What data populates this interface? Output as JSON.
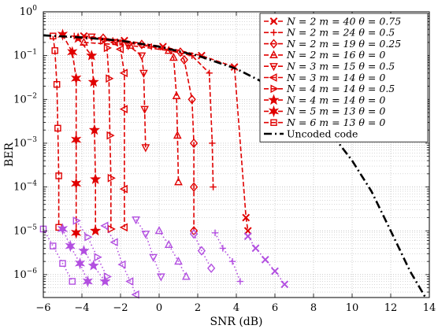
{
  "chart_data": {
    "type": "line",
    "xlabel": "SNR (dB)",
    "ylabel": "BER",
    "xlim": [
      -6,
      14
    ],
    "ylim": [
      3e-07,
      1
    ],
    "yscale": "log",
    "grid": true,
    "legend_position": "top-right",
    "x_ticks": [
      "−6",
      "−4",
      "−2",
      "0",
      "2",
      "4",
      "6",
      "8",
      "10",
      "12",
      "14"
    ],
    "y_ticks": [
      "10^0",
      "10^-1",
      "10^-2",
      "10^-3",
      "10^-4",
      "10^-5",
      "10^-6"
    ],
    "series": [
      {
        "name": "N = 2  m = 40  θ = 0.75",
        "marker": "x",
        "color": "#e00000",
        "dash": "6,3",
        "points": [
          [
            -3.9,
            0.28
          ],
          [
            -1.8,
            0.22
          ],
          [
            0.2,
            0.16
          ],
          [
            2.2,
            0.1
          ],
          [
            3.9,
            0.055
          ],
          [
            4.5,
            2e-05
          ],
          [
            4.6,
            1e-05
          ]
        ]
      },
      {
        "name": "N = 2  m = 24  θ = 0.5",
        "marker": "plus",
        "color": "#e00000",
        "dash": "6,3",
        "points": [
          [
            -4.4,
            0.28
          ],
          [
            -2.4,
            0.22
          ],
          [
            -0.4,
            0.16
          ],
          [
            1.7,
            0.1
          ],
          [
            2.6,
            0.04
          ],
          [
            2.75,
            0.001
          ],
          [
            2.8,
            0.0001
          ]
        ]
      },
      {
        "name": "N = 2  m = 19  θ = 0.25",
        "marker": "diamond",
        "color": "#e00000",
        "dash": "6,3",
        "points": [
          [
            -2.9,
            0.25
          ],
          [
            -0.9,
            0.18
          ],
          [
            1.1,
            0.12
          ],
          [
            1.3,
            0.08
          ],
          [
            1.7,
            0.01
          ],
          [
            1.8,
            0.001
          ],
          [
            1.8,
            0.0001
          ],
          [
            1.8,
            1e-05
          ]
        ]
      },
      {
        "name": "N = 2  m = 16  θ = 0",
        "marker": "triangle-up",
        "color": "#e00000",
        "dash": "6,3",
        "points": [
          [
            -3.9,
            0.2
          ],
          [
            -1.5,
            0.17
          ],
          [
            0.5,
            0.13
          ],
          [
            0.75,
            0.09
          ],
          [
            0.9,
            0.012
          ],
          [
            0.95,
            0.0015
          ],
          [
            1.0,
            0.00013
          ]
        ]
      },
      {
        "name": "N = 3  m = 15  θ = 0.5",
        "marker": "triangle-down",
        "color": "#e00000",
        "dash": "6,3",
        "points": [
          [
            -3.5,
            0.27
          ],
          [
            -1.6,
            0.17
          ],
          [
            -0.9,
            0.1
          ],
          [
            -0.8,
            0.04
          ],
          [
            -0.75,
            0.006
          ],
          [
            -0.7,
            0.0008
          ]
        ]
      },
      {
        "name": "N = 3  m = 14  θ = 0",
        "marker": "triangle-left",
        "color": "#e00000",
        "dash": "6,3",
        "points": [
          [
            -2.3,
            0.2
          ],
          [
            -2.0,
            0.14
          ],
          [
            -1.8,
            0.04
          ],
          [
            -1.8,
            0.006
          ],
          [
            -1.8,
            9e-05
          ],
          [
            -1.8,
            1.2e-05
          ]
        ]
      },
      {
        "name": "N = 4  m = 14  θ = 0.5",
        "marker": "triangle-right",
        "color": "#e00000",
        "dash": "6,3",
        "points": [
          [
            -2.9,
            0.22
          ],
          [
            -2.7,
            0.15
          ],
          [
            -2.6,
            0.03
          ],
          [
            -2.55,
            0.0015
          ],
          [
            -2.5,
            0.00016
          ],
          [
            -2.5,
            1.1e-05
          ]
        ]
      },
      {
        "name": "N = 4  m = 14  θ = 0",
        "marker": "star5",
        "color": "#e00000",
        "dash": "6,3",
        "points": [
          [
            -4.2,
            0.25
          ],
          [
            -3.5,
            0.1
          ],
          [
            -3.4,
            0.025
          ],
          [
            -3.35,
            0.002
          ],
          [
            -3.3,
            0.00015
          ],
          [
            -3.3,
            1e-05
          ]
        ]
      },
      {
        "name": "N = 5  m = 13  θ = 0",
        "marker": "star6",
        "color": "#e00000",
        "dash": "6,3",
        "points": [
          [
            -5.0,
            0.3
          ],
          [
            -4.5,
            0.12
          ],
          [
            -4.3,
            0.03
          ],
          [
            -4.3,
            0.0012
          ],
          [
            -4.3,
            0.00012
          ],
          [
            -4.3,
            9e-06
          ]
        ]
      },
      {
        "name": "N = 6  m = 13  θ = 0",
        "marker": "square",
        "color": "#e00000",
        "dash": "6,3",
        "points": [
          [
            -5.5,
            0.28
          ],
          [
            -5.4,
            0.13
          ],
          [
            -5.3,
            0.022
          ],
          [
            -5.25,
            0.0022
          ],
          [
            -5.2,
            0.00018
          ],
          [
            -5.2,
            1.2e-05
          ]
        ]
      },
      {
        "name": "Uncoded code",
        "marker": "none",
        "color": "#000000",
        "dash": "10,4,2,4",
        "width": 2.6,
        "points": [
          [
            -6,
            0.29
          ],
          [
            -4,
            0.26
          ],
          [
            -2,
            0.22
          ],
          [
            0,
            0.16
          ],
          [
            2,
            0.1
          ],
          [
            4,
            0.05
          ],
          [
            6,
            0.018
          ],
          [
            8,
            0.004
          ],
          [
            9,
            0.0015
          ],
          [
            10,
            0.0004
          ],
          [
            11,
            8e-05
          ],
          [
            12,
            1e-05
          ],
          [
            13,
            1.2e-06
          ],
          [
            13.8,
            3e-07
          ]
        ]
      },
      {
        "name": "",
        "marker": "x",
        "color": "#b24fe0",
        "dash": "1.5,3",
        "points": [
          [
            4.6,
            7.5e-06
          ],
          [
            5,
            4e-06
          ],
          [
            5.5,
            2.2e-06
          ],
          [
            6.0,
            1.2e-06
          ],
          [
            6.5,
            6e-07
          ]
        ]
      },
      {
        "name": "",
        "marker": "plus",
        "color": "#b24fe0",
        "dash": "1.5,3",
        "points": [
          [
            2.9,
            9e-06
          ],
          [
            3.3,
            4e-06
          ],
          [
            3.8,
            2e-06
          ],
          [
            4.2,
            7e-07
          ]
        ]
      },
      {
        "name": "",
        "marker": "diamond",
        "color": "#b24fe0",
        "dash": "1.5,3",
        "points": [
          [
            1.8,
            8.5e-06
          ],
          [
            2.2,
            3.5e-06
          ],
          [
            2.7,
            1.4e-06
          ]
        ]
      },
      {
        "name": "",
        "marker": "triangle-up",
        "color": "#b24fe0",
        "dash": "1.5,3",
        "points": [
          [
            0.0,
            1e-05
          ],
          [
            0.5,
            4.8e-06
          ],
          [
            1.0,
            2e-06
          ],
          [
            1.4,
            9e-07
          ]
        ]
      },
      {
        "name": "",
        "marker": "triangle-down",
        "color": "#b24fe0",
        "dash": "1.5,3",
        "points": [
          [
            -1.2,
            1.8e-05
          ],
          [
            -0.7,
            8.5e-06
          ],
          [
            -0.3,
            2.5e-06
          ],
          [
            0.1,
            9e-07
          ]
        ]
      },
      {
        "name": "",
        "marker": "triangle-left",
        "color": "#b24fe0",
        "dash": "1.5,3",
        "points": [
          [
            -2.8,
            1.3e-05
          ],
          [
            -2.3,
            5.5e-06
          ],
          [
            -1.9,
            1.7e-06
          ],
          [
            -1.5,
            7e-07
          ],
          [
            -1.2,
            3.5e-07
          ]
        ]
      },
      {
        "name": "",
        "marker": "triangle-right",
        "color": "#b24fe0",
        "dash": "1.5,3",
        "points": [
          [
            -4.3,
            1.7e-05
          ],
          [
            -3.7,
            7.2e-06
          ],
          [
            -3.2,
            2.5e-06
          ],
          [
            -2.7,
            9e-07
          ]
        ]
      },
      {
        "name": "",
        "marker": "star5",
        "color": "#b24fe0",
        "dash": "1.5,3",
        "points": [
          [
            -3.9,
            3.5e-06
          ],
          [
            -3.4,
            1.6e-06
          ],
          [
            -2.8,
            7e-07
          ]
        ]
      },
      {
        "name": "",
        "marker": "star6",
        "color": "#b24fe0",
        "dash": "1.5,3",
        "points": [
          [
            -5.0,
            1.1e-05
          ],
          [
            -4.6,
            4.5e-06
          ],
          [
            -4.1,
            1.8e-06
          ],
          [
            -3.7,
            7e-07
          ]
        ]
      },
      {
        "name": "",
        "marker": "square",
        "color": "#b24fe0",
        "dash": "1.5,3",
        "points": [
          [
            -6.0,
            1.1e-05
          ],
          [
            -5.5,
            4.5e-06
          ],
          [
            -5.0,
            1.8e-06
          ],
          [
            -4.5,
            7e-07
          ]
        ]
      }
    ]
  }
}
